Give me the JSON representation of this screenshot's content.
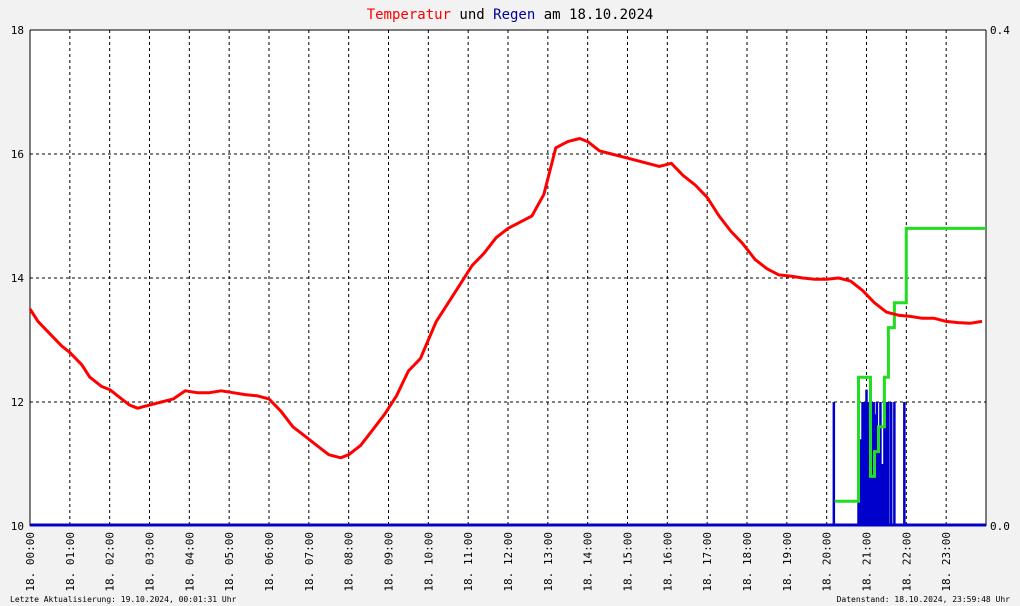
{
  "title": {
    "part1": "Temperatur",
    "part2": " und ",
    "part3": "Regen",
    "part4": " am 18.10.2024"
  },
  "footer": {
    "left": "Letzte Aktualisierung: 19.10.2024, 00:01:31 Uhr",
    "right": "Datenstand: 18.10.2024, 23:59:48 Uhr"
  },
  "colors": {
    "temperature": "#ff0000",
    "regen": "#000099",
    "rain_cumulative": "#22dd22",
    "rain_rate": "#0000cc",
    "grid": "#000000"
  },
  "chart_data": {
    "type": "line",
    "x_unit": "hour of day",
    "xlim": [
      0,
      24
    ],
    "x_ticks": [
      "18. 00:00",
      "18. 01:00",
      "18. 02:00",
      "18. 03:00",
      "18. 04:00",
      "18. 05:00",
      "18. 06:00",
      "18. 07:00",
      "18. 08:00",
      "18. 09:00",
      "18. 10:00",
      "18. 11:00",
      "18. 12:00",
      "18. 13:00",
      "18. 14:00",
      "18. 15:00",
      "18. 16:00",
      "18. 17:00",
      "18. 18:00",
      "18. 19:00",
      "18. 20:00",
      "18. 21:00",
      "18. 22:00",
      "18. 23:00"
    ],
    "ylim_left": [
      10,
      18
    ],
    "y_ticks_left": [
      "10",
      "12",
      "14",
      "16",
      "18"
    ],
    "ylim_right": [
      0,
      0.4
    ],
    "y_ticks_right": [
      "0.0",
      "0.4"
    ],
    "grid": true,
    "series": [
      {
        "axis": "left",
        "x": [
          0.0,
          0.2,
          0.5,
          0.8,
          1.0,
          1.3,
          1.5,
          1.8,
          2.0,
          2.3,
          2.5,
          2.7,
          3.0,
          3.3,
          3.6,
          3.9,
          4.2,
          4.5,
          4.8,
          5.1,
          5.4,
          5.7,
          6.0,
          6.3,
          6.6,
          6.9,
          7.2,
          7.5,
          7.8,
          8.0,
          8.3,
          8.6,
          8.9,
          9.2,
          9.5,
          9.8,
          10.0,
          10.2,
          10.5,
          10.8,
          11.1,
          11.4,
          11.7,
          12.0,
          12.3,
          12.6,
          12.9,
          13.2,
          13.5,
          13.8,
          14.0,
          14.3,
          14.6,
          14.9,
          15.2,
          15.5,
          15.8,
          16.1,
          16.4,
          16.7,
          17.0,
          17.3,
          17.6,
          17.9,
          18.2,
          18.5,
          18.8,
          19.1,
          19.4,
          19.7,
          20.0,
          20.3,
          20.6,
          20.9,
          21.2,
          21.5,
          21.8,
          22.1,
          22.4,
          22.7,
          23.0,
          23.3,
          23.6,
          23.9
        ],
        "y": [
          13.5,
          13.3,
          13.1,
          12.9,
          12.8,
          12.6,
          12.4,
          12.25,
          12.2,
          12.05,
          11.95,
          11.9,
          11.95,
          12.0,
          12.05,
          12.18,
          12.15,
          12.15,
          12.18,
          12.15,
          12.12,
          12.1,
          12.05,
          11.85,
          11.6,
          11.45,
          11.3,
          11.15,
          11.1,
          11.15,
          11.3,
          11.55,
          11.8,
          12.1,
          12.5,
          12.7,
          13.0,
          13.3,
          13.6,
          13.9,
          14.2,
          14.4,
          14.65,
          14.8,
          14.9,
          15.0,
          15.35,
          16.1,
          16.2,
          16.25,
          16.2,
          16.05,
          16.0,
          15.95,
          15.9,
          15.85,
          15.8,
          15.85,
          15.65,
          15.5,
          15.3,
          15.0,
          14.75,
          14.55,
          14.3,
          14.15,
          14.05,
          14.03,
          14.0,
          13.98,
          13.98,
          14.0,
          13.95,
          13.8,
          13.6,
          13.45,
          13.4,
          13.38,
          13.35,
          13.35,
          13.3,
          13.28,
          13.27,
          13.3
        ]
      },
      {
        "axis": "right",
        "x": [
          20.2,
          20.8,
          20.8,
          21.1,
          21.1,
          21.2,
          21.2,
          21.3,
          21.3,
          21.45,
          21.45,
          21.55,
          21.55,
          21.7,
          21.7,
          22.0,
          22.0,
          24.0
        ],
        "y": [
          0.02,
          0.02,
          0.12,
          0.12,
          0.04,
          0.04,
          0.06,
          0.06,
          0.08,
          0.08,
          0.12,
          0.12,
          0.16,
          0.16,
          0.18,
          0.18,
          0.24,
          0.24
        ]
      },
      {
        "axis": "right",
        "type": "bar",
        "x": [
          20.18,
          20.8,
          20.85,
          20.9,
          20.95,
          21.0,
          21.03,
          21.07,
          21.1,
          21.14,
          21.18,
          21.22,
          21.26,
          21.3,
          21.35,
          21.4,
          21.45,
          21.5,
          21.55,
          21.62,
          21.7,
          21.95
        ],
        "y": [
          0.1,
          0.1,
          0.07,
          0.1,
          0.1,
          0.11,
          0.1,
          0.08,
          0.1,
          0.1,
          0.1,
          0.09,
          0.1,
          0.07,
          0.1,
          0.05,
          0.1,
          0.1,
          0.1,
          0.1,
          0.1,
          0.1
        ]
      }
    ]
  }
}
